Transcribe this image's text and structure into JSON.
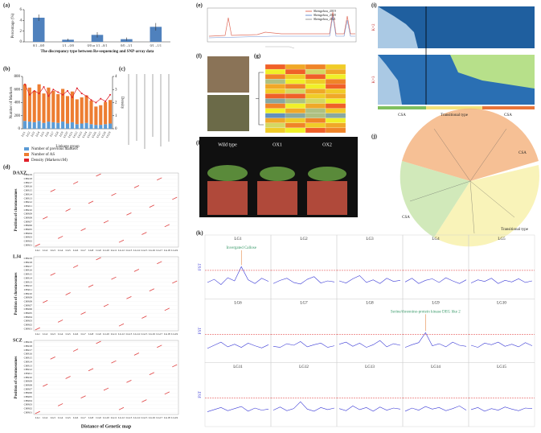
{
  "chart_data": [
    {
      "type": "bar",
      "xlabel": "The discrepancy type between Re-sequencing and SNP-array data",
      "ylabel": "Percentage (%)",
      "categories": [
        "0/1→0/0",
        "1/1→0/0",
        "0/0 or 1/1→0/1",
        "0/0→1/1",
        "0/1→1/1"
      ],
      "values": [
        4.5,
        0.4,
        1.3,
        0.5,
        2.8
      ],
      "errors": [
        0.6,
        0.2,
        0.5,
        0.3,
        0.7
      ],
      "color": "#4f81bd",
      "ylim": [
        0,
        6
      ],
      "yticks": [
        0,
        2,
        4,
        6
      ]
    },
    {
      "type": "bar",
      "xlabel": "Linkage group",
      "ylabel": "Number of Markers",
      "y2label": "Density",
      "categories": [
        "LG1",
        "LG2",
        "LG3",
        "LG4",
        "LG5",
        "LG6",
        "LG7",
        "LG8",
        "LG9",
        "LG10",
        "LG11",
        "LG12",
        "LG13",
        "LG14",
        "LG15",
        "LG16",
        "LG17",
        "LG18",
        "LG19"
      ],
      "series": [
        {
          "name": "Number of previous markers",
          "color": "#5b9bd5",
          "values": [
            120,
            110,
            100,
            120,
            90,
            110,
            100,
            90,
            110,
            80,
            100,
            70,
            80,
            90,
            70,
            60,
            60,
            70,
            80
          ]
        },
        {
          "name": "Number of AS",
          "color": "#ed7d31",
          "values": [
            560,
            520,
            480,
            560,
            450,
            520,
            480,
            440,
            500,
            420,
            470,
            380,
            400,
            420,
            360,
            280,
            300,
            340,
            360
          ]
        },
        {
          "name": "Density (Markers/cM)",
          "color": "#e0202a",
          "axis": "y2",
          "values": [
            3.4,
            2.6,
            2.9,
            2.7,
            3.2,
            2.5,
            3.0,
            2.8,
            2.6,
            2.9,
            2.4,
            3.1,
            2.7,
            2.5,
            2.2,
            2.0,
            2.3,
            2.1,
            2.6
          ]
        }
      ],
      "ylim": [
        0,
        800
      ],
      "yticks": [
        0,
        200,
        400,
        600,
        800
      ],
      "y2lim": [
        0,
        4
      ],
      "y2ticks": [
        0,
        1,
        2,
        3,
        4
      ]
    },
    {
      "type": "heatmap",
      "values": [
        [
          0.9,
          0.7,
          0.8,
          0.6
        ],
        [
          0.5,
          0.9,
          0.4,
          0.7
        ],
        [
          0.8,
          0.6,
          0.9,
          0.5
        ],
        [
          0.3,
          0.5,
          0.6,
          0.8
        ],
        [
          0.7,
          0.8,
          0.5,
          0.9
        ],
        [
          0.6,
          0.4,
          0.7,
          0.6
        ],
        [
          0.9,
          0.9,
          0.6,
          0.7
        ],
        [
          0.2,
          0.3,
          0.4,
          0.5
        ],
        [
          0.8,
          0.5,
          0.7,
          0.9
        ],
        [
          0.5,
          0.7,
          0.3,
          0.6
        ],
        [
          0.1,
          0.2,
          0.3,
          0.2
        ],
        [
          0.7,
          0.6,
          0.8,
          0.5
        ],
        [
          0.4,
          0.8,
          0.6,
          0.7
        ],
        [
          0.6,
          0.5,
          0.9,
          0.8
        ]
      ],
      "ylim": [
        0,
        1
      ]
    },
    {
      "type": "manhattan",
      "ylabel": "FST",
      "ylim": [
        0,
        1
      ],
      "threshold": 0.45,
      "color": "#3b3bd6",
      "panels": [
        {
          "name": "LG1",
          "values": [
            0.22,
            0.28,
            0.18,
            0.31,
            0.25,
            0.52,
            0.27,
            0.2,
            0.3,
            0.24
          ],
          "annotation": "Invergated Callose"
        },
        {
          "name": "LG2",
          "values": [
            0.2,
            0.26,
            0.3,
            0.22,
            0.19,
            0.28,
            0.33,
            0.21,
            0.25,
            0.23
          ]
        },
        {
          "name": "LG3",
          "values": [
            0.25,
            0.21,
            0.29,
            0.35,
            0.22,
            0.27,
            0.2,
            0.3,
            0.24,
            0.26
          ]
        },
        {
          "name": "LG4",
          "values": [
            0.23,
            0.3,
            0.2,
            0.26,
            0.29,
            0.22,
            0.31,
            0.25,
            0.2,
            0.27
          ]
        },
        {
          "name": "LG5",
          "values": [
            0.21,
            0.27,
            0.24,
            0.3,
            0.2,
            0.26,
            0.23,
            0.29,
            0.22,
            0.25
          ]
        },
        {
          "name": "LG6",
          "values": [
            0.18,
            0.24,
            0.3,
            0.21,
            0.26,
            0.2,
            0.28,
            0.23,
            0.19,
            0.25
          ]
        },
        {
          "name": "LG7",
          "values": [
            0.22,
            0.2,
            0.27,
            0.24,
            0.31,
            0.21,
            0.25,
            0.28,
            0.2,
            0.23
          ]
        },
        {
          "name": "LG8",
          "values": [
            0.26,
            0.3,
            0.22,
            0.28,
            0.2,
            0.25,
            0.33,
            0.21,
            0.27,
            0.24
          ]
        },
        {
          "name": "LG9",
          "values": [
            0.2,
            0.25,
            0.29,
            0.48,
            0.23,
            0.27,
            0.21,
            0.3,
            0.24,
            0.22
          ],
          "annotation": "Serine/threonine-protein kinase DEG like 2"
        },
        {
          "name": "LG10",
          "values": [
            0.24,
            0.2,
            0.28,
            0.25,
            0.3,
            0.22,
            0.26,
            0.21,
            0.29,
            0.23
          ]
        },
        {
          "name": "LG11",
          "values": [
            0.19,
            0.23,
            0.27,
            0.21,
            0.25,
            0.29,
            0.2,
            0.26,
            0.22,
            0.24
          ]
        },
        {
          "name": "LG12",
          "values": [
            0.22,
            0.28,
            0.21,
            0.25,
            0.38,
            0.24,
            0.2,
            0.27,
            0.23,
            0.26
          ]
        },
        {
          "name": "LG13",
          "values": [
            0.25,
            0.21,
            0.3,
            0.23,
            0.27,
            0.2,
            0.28,
            0.22,
            0.26,
            0.24
          ]
        },
        {
          "name": "LG14",
          "values": [
            0.2,
            0.26,
            0.22,
            0.29,
            0.24,
            0.27,
            0.21,
            0.25,
            0.3,
            0.22
          ]
        },
        {
          "name": "LG15",
          "values": [
            0.23,
            0.27,
            0.2,
            0.25,
            0.22,
            0.28,
            0.24,
            0.21,
            0.26,
            0.25
          ]
        }
      ]
    }
  ],
  "panel_labels": [
    "(a)",
    "(b)",
    "(c)",
    "(d)",
    "(e)",
    "(f)",
    "(g)",
    "(h)",
    "(i)",
    "(j)",
    "(k)"
  ],
  "d": {
    "plots": [
      "DAXZ",
      "LJ4",
      "SCZ"
    ],
    "ylabel": "Position of chromosomes",
    "xlabel": "Distance of Genetic map",
    "chromosomes": [
      "CHR01",
      "CHR02",
      "CHR03",
      "CHR04",
      "CHR05",
      "CHR06",
      "CHR07",
      "CHR08",
      "CHR09",
      "CHR10",
      "CHR11",
      "CHR12",
      "CHR13",
      "CHR14",
      "CHR15",
      "CHR16",
      "CHR17",
      "CHR18",
      "CHR19"
    ],
    "groups": [
      "LG1",
      "LG2",
      "LG3",
      "LG4",
      "LG5",
      "LG6",
      "LG7",
      "LG8",
      "LG9",
      "LG10",
      "LG11",
      "LG12",
      "LG13",
      "LG14",
      "LG15",
      "LG16",
      "LG17",
      "LG18",
      "LG19"
    ]
  },
  "e": {
    "legend": [
      "Shengzhou_2019",
      "Shengzhou_2020",
      "Shengzhou_2021"
    ]
  },
  "h": {
    "labels": [
      "Wild type",
      "OX1",
      "OX2"
    ]
  },
  "i": {
    "k": [
      "K=2",
      "K=3"
    ],
    "groups": [
      "CSA",
      "Transitional type",
      "CSA"
    ]
  },
  "j": {
    "labels": [
      "CSA",
      "CSA",
      "Transitional type"
    ]
  }
}
